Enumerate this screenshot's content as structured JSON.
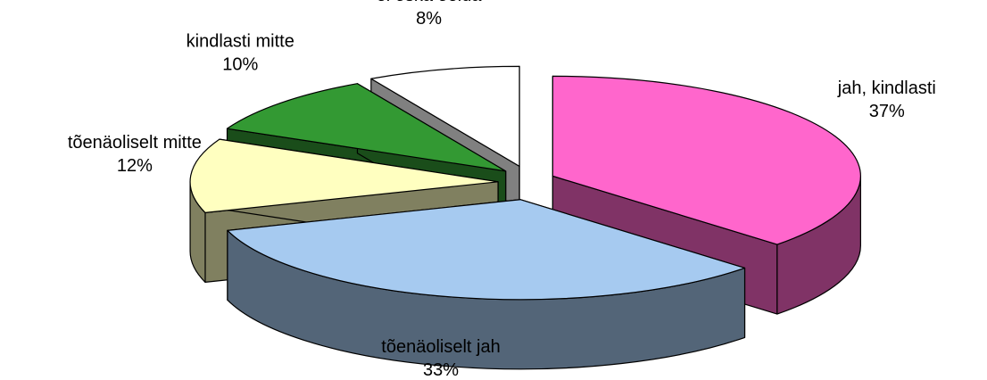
{
  "chart_data": {
    "type": "pie3d",
    "categories": [
      "jah, kindlasti",
      "tõenäoliselt jah",
      "tõenäoliselt mitte",
      "kindlasti mitte",
      "ei oska öelda"
    ],
    "values": [
      37,
      33,
      12,
      10,
      8
    ],
    "value_labels": [
      "37%",
      "33%",
      "12%",
      "10%",
      "8%"
    ],
    "colors": [
      "#ff66cc",
      "#a6caf0",
      "#ffffc0",
      "#339933",
      "#ffffff"
    ]
  }
}
